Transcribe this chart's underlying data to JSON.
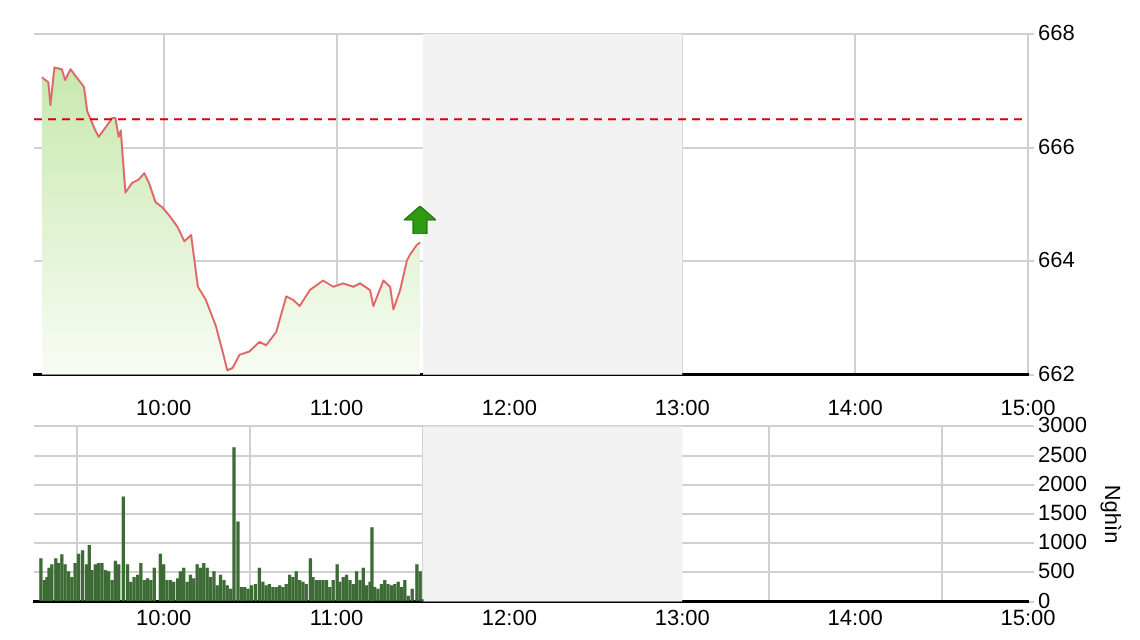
{
  "chart_data": [
    {
      "type": "area",
      "xlim": [
        9.25,
        15
      ],
      "xticks": [
        {
          "value": 10,
          "label": null
        },
        {
          "value": 11,
          "label": null
        },
        {
          "value": 12,
          "label": null
        },
        {
          "value": 13,
          "label": null
        },
        {
          "value": 14,
          "label": null
        },
        {
          "value": 15,
          "label": null
        }
      ],
      "ylim": [
        662,
        668
      ],
      "yticks": [
        662,
        664,
        666,
        668
      ],
      "grid": true,
      "tick_labels": "y",
      "legend": false,
      "bands": [
        {
          "axis": "x",
          "from": 11.5,
          "to": 13,
          "color": "#f2f2f2"
        }
      ],
      "ref_lines": [
        {
          "axis": "y",
          "value": 666.5,
          "color": "#dd0000",
          "line_style": "dashed"
        }
      ],
      "series": [
        {
          "color": "#e06666",
          "x": [
            9.295,
            9.333,
            9.345,
            9.368,
            9.411,
            9.43,
            9.461,
            9.488,
            9.539,
            9.558,
            9.605,
            9.624,
            9.663,
            9.702,
            9.721,
            9.74,
            9.752,
            9.779,
            9.818,
            9.857,
            9.888,
            9.915,
            9.953,
            9.992,
            10.031,
            10.081,
            10.12,
            10.159,
            10.198,
            10.244,
            10.302,
            10.341,
            10.368,
            10.399,
            10.438,
            10.496,
            10.554,
            10.593,
            10.651,
            10.709,
            10.748,
            10.787,
            10.845,
            10.922,
            10.981,
            11.039,
            11.097,
            11.136,
            11.194,
            11.213,
            11.271,
            11.31,
            11.329,
            11.368,
            11.407,
            11.426,
            11.465,
            11.484
          ],
          "values": [
            667.24,
            667.15,
            666.75,
            667.41,
            667.38,
            667.19,
            667.38,
            667.27,
            667.07,
            666.64,
            666.3,
            666.19,
            666.35,
            666.52,
            666.52,
            666.19,
            666.3,
            665.21,
            665.38,
            665.44,
            665.55,
            665.38,
            665.04,
            664.95,
            664.81,
            664.6,
            664.35,
            664.46,
            663.55,
            663.32,
            662.86,
            662.41,
            662.08,
            662.12,
            662.35,
            662.41,
            662.58,
            662.52,
            662.75,
            663.38,
            663.32,
            663.21,
            663.49,
            663.66,
            663.55,
            663.61,
            663.55,
            663.61,
            663.49,
            663.21,
            663.66,
            663.55,
            663.15,
            663.49,
            664.01,
            664.12,
            664.29,
            664.33
          ]
        }
      ]
    },
    {
      "type": "bar",
      "ylabel": "Nghìn",
      "xlim": [
        9.25,
        15
      ],
      "xticks": [
        {
          "value": 10,
          "label": "10:00"
        },
        {
          "value": 11,
          "label": "11:00"
        },
        {
          "value": 12,
          "label": "12:00"
        },
        {
          "value": 13,
          "label": "13:00"
        },
        {
          "value": 14,
          "label": "14:00"
        },
        {
          "value": 15,
          "label": "15:00"
        }
      ],
      "x2lim": [
        9.25,
        15
      ],
      "x2ticks": [
        {
          "value": 10,
          "label": "10:00"
        },
        {
          "value": 11,
          "label": "11:00"
        },
        {
          "value": 12,
          "label": "12:00"
        },
        {
          "value": 13,
          "label": "13:00"
        },
        {
          "value": 14,
          "label": "14:00"
        },
        {
          "value": 15,
          "label": "15:00"
        }
      ],
      "ylim": [
        0,
        3000
      ],
      "yticks": [
        0,
        500,
        1000,
        1500,
        2000,
        2500,
        3000
      ],
      "grid": true,
      "legend": false,
      "bands": [
        {
          "axis": "x",
          "from": 11.5,
          "to": 13,
          "color": "#f2f2f2"
        }
      ],
      "series": [
        {
          "color": "#3d6b35",
          "x": [
            9.29,
            9.31,
            9.325,
            9.337,
            9.353,
            9.376,
            9.391,
            9.411,
            9.43,
            9.45,
            9.469,
            9.488,
            9.508,
            9.531,
            9.554,
            9.57,
            9.585,
            9.605,
            9.624,
            9.643,
            9.663,
            9.682,
            9.702,
            9.721,
            9.74,
            9.767,
            9.791,
            9.81,
            9.829,
            9.849,
            9.868,
            9.888,
            9.907,
            9.926,
            9.946,
            9.981,
            10.0,
            10.019,
            10.039,
            10.058,
            10.081,
            10.097,
            10.116,
            10.136,
            10.155,
            10.174,
            10.194,
            10.213,
            10.232,
            10.252,
            10.271,
            10.291,
            10.31,
            10.329,
            10.349,
            10.368,
            10.388,
            10.407,
            10.43,
            10.45,
            10.469,
            10.488,
            10.508,
            10.531,
            10.554,
            10.574,
            10.593,
            10.612,
            10.632,
            10.651,
            10.671,
            10.69,
            10.709,
            10.729,
            10.748,
            10.767,
            10.787,
            10.806,
            10.825,
            10.849,
            10.864,
            10.884,
            10.903,
            10.922,
            10.942,
            10.961,
            10.981,
            11.004,
            11.019,
            11.039,
            11.058,
            11.078,
            11.097,
            11.116,
            11.136,
            11.155,
            11.174,
            11.194,
            11.205,
            11.221,
            11.24,
            11.26,
            11.279,
            11.298,
            11.318,
            11.337,
            11.357,
            11.376,
            11.395,
            11.415,
            11.438,
            11.465,
            11.484,
            11.495
          ],
          "values": [
            730,
            360,
            410,
            570,
            630,
            730,
            650,
            800,
            630,
            510,
            410,
            650,
            810,
            870,
            630,
            960,
            530,
            630,
            650,
            650,
            530,
            510,
            360,
            690,
            630,
            1790,
            630,
            330,
            410,
            450,
            650,
            360,
            390,
            360,
            570,
            810,
            630,
            360,
            360,
            330,
            390,
            510,
            570,
            330,
            450,
            390,
            630,
            570,
            650,
            570,
            410,
            510,
            270,
            450,
            360,
            270,
            210,
            2630,
            1360,
            240,
            240,
            210,
            270,
            290,
            570,
            330,
            270,
            290,
            240,
            240,
            270,
            240,
            290,
            450,
            410,
            510,
            360,
            330,
            290,
            730,
            410,
            360,
            360,
            360,
            360,
            240,
            360,
            630,
            330,
            410,
            450,
            360,
            290,
            510,
            360,
            570,
            270,
            330,
            1260,
            240,
            210,
            290,
            360,
            290,
            270,
            290,
            330,
            240,
            360,
            90,
            210,
            630,
            510,
            30
          ]
        }
      ]
    }
  ]
}
